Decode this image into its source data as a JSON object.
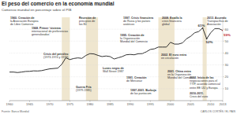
{
  "chart_data": {
    "type": "line",
    "title": "El peso del comercio en la economía mundial",
    "subtitle": "Comercio mundial en porcentaje sobre el PIB",
    "source": "Fuente: Banco Mundial",
    "credit": "CARLOS CORTÉS / EL PAÍS",
    "color": "#333333",
    "grid": true,
    "x": [
      1960,
      1961,
      1962,
      1963,
      1964,
      1965,
      1966,
      1967,
      1968,
      1969,
      1970,
      1971,
      1972,
      1973,
      1974,
      1975,
      1976,
      1977,
      1978,
      1979,
      1980,
      1981,
      1982,
      1983,
      1984,
      1985,
      1986,
      1987,
      1988,
      1989,
      1990,
      1991,
      1992,
      1993,
      1994,
      1995,
      1996,
      1997,
      1998,
      1999,
      2000,
      2001,
      2002,
      2003,
      2004,
      2005,
      2006,
      2007,
      2008,
      2009,
      2010,
      2011,
      2012,
      2013
    ],
    "values": [
      24,
      24,
      23.6,
      24,
      24.5,
      24.6,
      25,
      24.9,
      25.2,
      26,
      26.7,
      27,
      27.3,
      30.5,
      36,
      34.5,
      35.4,
      35.9,
      35.5,
      38,
      39.5,
      39.2,
      38,
      37,
      37.5,
      37,
      35,
      36,
      37,
      38.5,
      38.8,
      38.5,
      39.4,
      39.5,
      41,
      43,
      43.5,
      45,
      45,
      45,
      49,
      47.5,
      47.5,
      48.5,
      52,
      54,
      57,
      58,
      61,
      52,
      57,
      60.5,
      60.5,
      59
    ],
    "xlim": [
      1960,
      2013
    ],
    "xticks": [
      1960,
      1965,
      1970,
      1975,
      1980,
      1985,
      1990,
      1995,
      2000,
      2005,
      2010,
      2013
    ],
    "ylim": [
      0,
      70
    ],
    "yticks": [
      10,
      20,
      30,
      40,
      50,
      60
    ],
    "bands": [
      [
        1973,
        1975
      ],
      [
        1979,
        1982
      ],
      [
        1997,
        2001
      ],
      [
        2008,
        2009
      ]
    ],
    "point_labels": [
      {
        "x": 2008,
        "value": 61,
        "label": "61%",
        "color": "#333333"
      },
      {
        "x": 2009,
        "value": 52,
        "label": "52%",
        "color": "#333333"
      },
      {
        "x": 2013,
        "value": 59,
        "label": "59%",
        "color": "#c0282d"
      }
    ],
    "annotations": [
      {
        "lines": [
          "1960. Creación de",
          "la Asociación Europea",
          "de Libre Comercio"
        ]
      },
      {
        "lines": [
          "1968. Primer ‘sistema",
          "internacional de preferencias",
          "generalizadas’"
        ]
      },
      {
        "lines": [
          "Recesión de",
          "principios de",
          "los 80"
        ]
      },
      {
        "lines": [
          "Crisis del petróleo",
          "(1973-1974 y 1979)"
        ]
      },
      {
        "lines": [
          "Lunes negro de",
          "Wall Street 1987"
        ]
      },
      {
        "lines": [
          "Guerra Fría",
          "(1979-1985)"
        ]
      },
      {
        "lines": [
          "1997. Crisis financiera",
          "de Rusia y los países",
          "asiáticos"
        ]
      },
      {
        "lines": [
          "1995. Creación de",
          "la Organización",
          "Mundial del Comercio"
        ]
      },
      {
        "lines": [
          "1991. Creación",
          "de Mercosur"
        ]
      },
      {
        "lines": [
          "1997-2001. Burbuja",
          "de las puntocom"
        ]
      },
      {
        "lines": [
          "2001. China entra",
          "en la Organización",
          "Mundial del Comercio"
        ]
      },
      {
        "lines": [
          "2002. El euro entra",
          "en circulación"
        ]
      },
      {
        "lines": [
          "2008. Estalla la",
          "crisis financiera",
          "global"
        ]
      },
      {
        "lines": [
          "2013. Acuerdo",
          "Transpacífico de",
          "Asociación"
        ]
      },
      {
        "lines": [
          "2013. Inicio de las",
          "negociaciones para el",
          "TTIP, acuerdo comercial",
          "entre EE UU y Europa"
        ]
      },
      {
        "lines": [
          "2010-2011.",
          "Crisis del euro"
        ]
      }
    ]
  }
}
